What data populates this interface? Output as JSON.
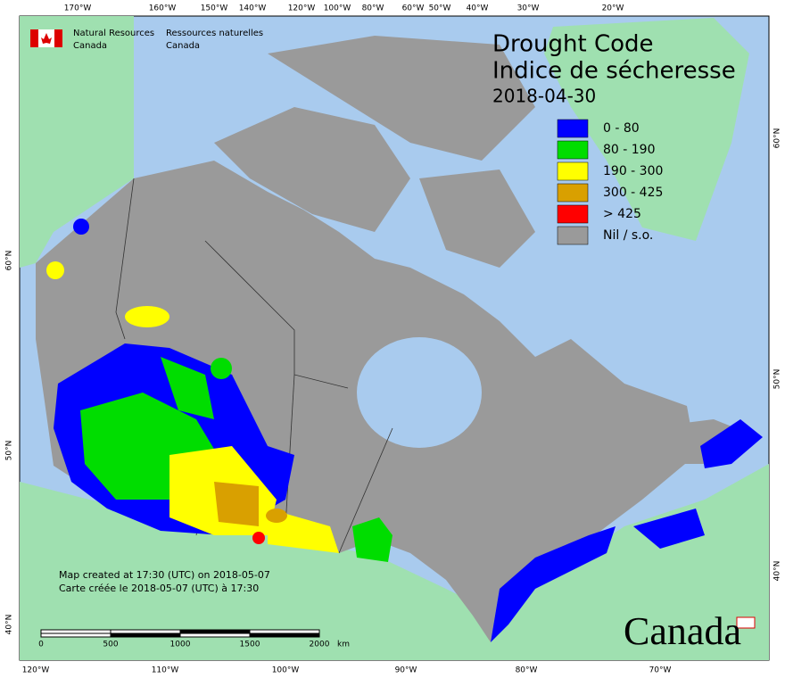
{
  "header": {
    "agency_en": "Natural Resources",
    "country_en": "Canada",
    "agency_fr": "Ressources naturelles",
    "country_fr": "Canada"
  },
  "title": {
    "en": "Drought Code",
    "fr": "Indice de sécheresse",
    "date": "2018-04-30"
  },
  "legend": [
    {
      "label": "0 - 80",
      "color": "#0000ff"
    },
    {
      "label": "80 - 190",
      "color": "#00dd00"
    },
    {
      "label": "190 - 300",
      "color": "#ffff00"
    },
    {
      "label": "300 - 425",
      "color": "#d9a000"
    },
    {
      "label": "> 425",
      "color": "#ff0000"
    },
    {
      "label": "Nil / s.o.",
      "color": "#9a9a9a"
    }
  ],
  "top_labels": [
    "170°W",
    "160°W",
    "150°W",
    "140°W",
    "120°W",
    "100°W",
    "80°W",
    "60°W",
    "50°W",
    "40°W",
    "30°W",
    "20°W"
  ],
  "bottom_labels": [
    "120°W",
    "110°W",
    "100°W",
    "90°W",
    "80°W",
    "70°W"
  ],
  "left_labels": [
    "60°N",
    "50°N",
    "40°N"
  ],
  "right_labels": [
    "60°N",
    "50°N",
    "40°N"
  ],
  "notes": [
    "Map created at 17:30 (UTC) on 2018-05-07",
    "Carte créée le 2018-05-07 (UTC) à 17:30"
  ],
  "scale": [
    "0",
    "500",
    "1000",
    "1500",
    "2000",
    "km"
  ],
  "wordmark": "Canada"
}
